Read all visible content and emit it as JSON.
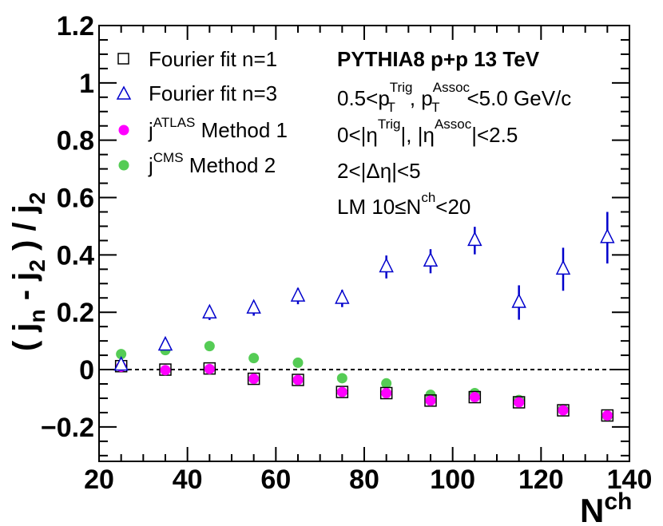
{
  "chart_data": {
    "type": "scatter",
    "xlabel": "N",
    "xlabel_sup": "ch",
    "ylabel_parts": {
      "open": "( j",
      "sub_n": "n",
      "minus": " - j",
      "sub_2": "2",
      "close": " ) / j",
      "sub_2b": "2"
    },
    "xlim": [
      20,
      140
    ],
    "ylim": [
      -0.32,
      1.2
    ],
    "x_ticks": [
      20,
      40,
      60,
      80,
      100,
      120,
      140
    ],
    "x_tick_labels": [
      "20",
      "40",
      "60",
      "80",
      "100",
      "120",
      "140"
    ],
    "y_ticks": [
      -0.2,
      0,
      0.2,
      0.4,
      0.6,
      0.8,
      1,
      1.2
    ],
    "y_tick_labels": [
      "−0.2",
      "0",
      "0.2",
      "0.4",
      "0.6",
      "0.8",
      "1",
      "1.2"
    ],
    "reference_line_y": 0,
    "series": [
      {
        "name": "Fourier fit n=1",
        "marker": "open-square",
        "color": "#000000",
        "x": [
          25,
          35,
          45,
          55,
          65,
          75,
          85,
          95,
          105,
          115,
          125,
          135
        ],
        "y": [
          0.012,
          0.0,
          0.004,
          -0.032,
          -0.036,
          -0.078,
          -0.082,
          -0.108,
          -0.096,
          -0.114,
          -0.142,
          -0.16
        ],
        "err": [
          0.008,
          0.008,
          0.008,
          0.008,
          0.008,
          0.008,
          0.008,
          0.01,
          0.01,
          0.01,
          0.012,
          0.012
        ]
      },
      {
        "name": "Fourier fit n=3",
        "marker": "open-triangle",
        "color": "#0000cc",
        "x": [
          25,
          35,
          45,
          55,
          65,
          75,
          85,
          95,
          105,
          115,
          125,
          135
        ],
        "y": [
          0.015,
          0.085,
          0.197,
          0.214,
          0.256,
          0.248,
          0.358,
          0.378,
          0.45,
          0.234,
          0.35,
          0.46
        ],
        "err": [
          0.012,
          0.018,
          0.024,
          0.026,
          0.028,
          0.03,
          0.04,
          0.042,
          0.048,
          0.06,
          0.075,
          0.09
        ]
      },
      {
        "name_main": "j",
        "name_sup": "ATLAS",
        "name_rest": " Method 1",
        "name": "j^ATLAS Method 1",
        "marker": "filled-circle",
        "color": "#ff00ff",
        "x": [
          25,
          35,
          45,
          55,
          65,
          75,
          85,
          95,
          105,
          115,
          125,
          135
        ],
        "y": [
          0.01,
          -0.002,
          0.002,
          -0.032,
          -0.036,
          -0.078,
          -0.082,
          -0.108,
          -0.096,
          -0.114,
          -0.142,
          -0.16
        ]
      },
      {
        "name_main": "j",
        "name_sup": "CMS",
        "name_rest": " Method 2",
        "name": "j^CMS Method 2",
        "marker": "filled-circle",
        "color": "#55cc55",
        "x": [
          25,
          35,
          45,
          55,
          65,
          75,
          85,
          95,
          105,
          115,
          125,
          135
        ],
        "y": [
          0.054,
          0.068,
          0.082,
          0.04,
          0.024,
          -0.03,
          -0.048,
          -0.088,
          -0.082,
          -0.106,
          -0.138,
          -0.162
        ]
      }
    ],
    "legend": {
      "entry1": "Fourier fit n=1",
      "entry2": "Fourier fit n=3",
      "entry3_main": "j",
      "entry3_sup": "ATLAS",
      "entry3_rest": " Method 1",
      "entry4_main": "j",
      "entry4_sup": "CMS",
      "entry4_rest": " Method 2"
    },
    "annotations": {
      "title": "PYTHIA8 p+p 13 TeV",
      "pt_prefix": "0.5<p",
      "pt_sub": "T",
      "pt_sup": "Trig",
      "pt_mid": ", p",
      "pt_sub2": "T",
      "pt_sup2": "Assoc",
      "pt_suffix": "<5.0 GeV/c",
      "eta_prefix": "0<|η",
      "eta_sup": "Trig",
      "eta_mid": "|, |η",
      "eta_sup2": "Assoc",
      "eta_suffix": "|<2.5",
      "deta": "2<|Δη|<5",
      "lm_prefix": "LM 10≤N",
      "lm_sup": "ch",
      "lm_suffix": "<20"
    }
  }
}
